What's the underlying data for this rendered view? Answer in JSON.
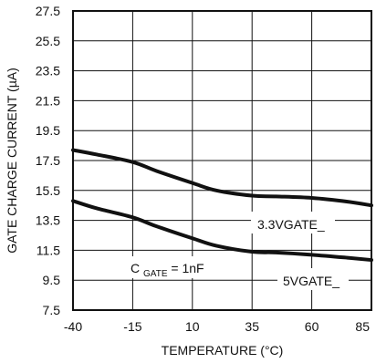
{
  "chart_data": {
    "type": "line",
    "xlabel": "TEMPERATURE (°C)",
    "ylabel": "GATE CHARGE CURRENT (µA)",
    "xlim": [
      -40,
      85
    ],
    "ylim": [
      7.5,
      27.5
    ],
    "xticks": [
      -40,
      -15,
      10,
      35,
      60,
      85
    ],
    "yticks": [
      7.5,
      9.5,
      11.5,
      13.5,
      15.5,
      17.5,
      19.5,
      21.5,
      23.5,
      25.5,
      27.5
    ],
    "grid": true,
    "series": [
      {
        "name": "3.3VGATE_",
        "x": [
          -40,
          -30,
          -15,
          -5,
          10,
          20,
          35,
          45,
          60,
          75,
          85
        ],
        "y": [
          18.2,
          17.9,
          17.4,
          16.8,
          16.0,
          15.5,
          15.15,
          15.1,
          15.0,
          14.75,
          14.5
        ]
      },
      {
        "name": "5VGATE_",
        "x": [
          -40,
          -30,
          -15,
          -5,
          10,
          20,
          35,
          45,
          60,
          75,
          85
        ],
        "y": [
          14.8,
          14.3,
          13.7,
          13.1,
          12.3,
          11.8,
          11.4,
          11.35,
          11.2,
          11.0,
          10.85
        ]
      }
    ],
    "annotations": [
      {
        "text": "3.3VGATE_"
      },
      {
        "text": "5VGATE_"
      },
      {
        "text_main": "C",
        "text_sub": "GATE",
        "text_tail": " = 1nF"
      }
    ]
  }
}
